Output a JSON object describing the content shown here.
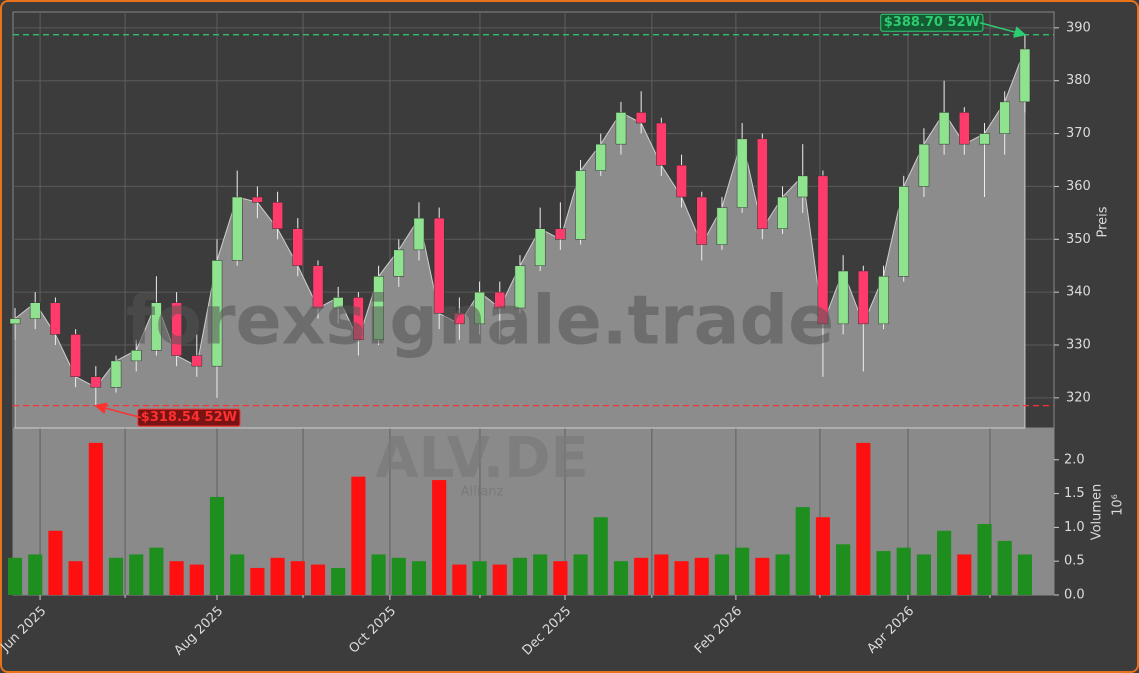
{
  "chart_data": {
    "type": "candlestick",
    "watermark": "forexsignale.trade",
    "symbol": "ALV.DE",
    "company": "Allianz",
    "ylabel": "Preis",
    "volume_label": "Volumen",
    "volume_multiplier_label": "10⁶",
    "up_color": "#8fe38f",
    "down_color": "#ff3b6b",
    "volume_up_color": "#1e8f1e",
    "volume_down_color": "#ff1010",
    "area_color": "#8c8c8c",
    "grid": true,
    "xlim": [
      -0.1,
      51.44
    ],
    "xticks": [
      {
        "value": 1.24,
        "label": "Jun 2025"
      },
      {
        "value": 10.0,
        "label": "Aug 2025"
      },
      {
        "value": 18.56,
        "label": "Oct 2025"
      },
      {
        "value": 27.23,
        "label": "Dec 2025"
      },
      {
        "value": 35.69,
        "label": "Feb 2026"
      },
      {
        "value": 44.21,
        "label": "Apr 2026"
      }
    ],
    "xminorticks": [
      5.45,
      14.26,
      23.02,
      31.53,
      39.85,
      48.27
    ],
    "ylim": [
      314.3,
      393.0
    ],
    "yticks": [
      320,
      330,
      340,
      350,
      360,
      370,
      380,
      390
    ],
    "volume_ylim": [
      0,
      2.47
    ],
    "volume_yticks": [
      {
        "value": 0,
        "label": "0.0"
      },
      0.5,
      {
        "value": 1,
        "label": "1.0"
      },
      1.5,
      {
        "value": 2,
        "label": "2.0"
      }
    ],
    "open": [
      334,
      335,
      338,
      332,
      324,
      322,
      327,
      329,
      338,
      328,
      326,
      346,
      358,
      357,
      352,
      345,
      337,
      339,
      331,
      343,
      348,
      354,
      336,
      334,
      340,
      337,
      345,
      352,
      350,
      363,
      368,
      374,
      372,
      364,
      358,
      349,
      356,
      369,
      352,
      358,
      362,
      334,
      344,
      334,
      343,
      360,
      368,
      374,
      368,
      370,
      376
    ],
    "high": [
      337,
      340,
      339,
      333,
      326,
      328,
      331,
      343,
      340,
      332,
      350,
      363,
      360,
      359,
      354,
      346,
      341,
      340,
      345,
      350,
      357,
      356,
      339,
      342,
      342,
      347,
      356,
      357,
      365,
      370,
      376,
      378,
      373,
      366,
      359,
      358,
      372,
      370,
      360,
      368,
      363,
      347,
      345,
      345,
      362,
      371,
      380,
      375,
      372,
      378,
      388.7
    ],
    "low": [
      331,
      333,
      330,
      322,
      318.54,
      321,
      325,
      328,
      326,
      324,
      320,
      345,
      354,
      350,
      343,
      335,
      334,
      328,
      330,
      341,
      346,
      333,
      331,
      332,
      331,
      336,
      344,
      348,
      349,
      362,
      366,
      370,
      362,
      356,
      346,
      348,
      355,
      350,
      351,
      355,
      324,
      332,
      325,
      333,
      342,
      358,
      366,
      366,
      358,
      366,
      374
    ],
    "close": [
      335,
      338,
      332,
      324,
      322,
      327,
      329,
      338,
      328,
      326,
      346,
      358,
      357,
      352,
      345,
      337,
      339,
      331,
      343,
      348,
      354,
      336,
      334,
      340,
      337,
      345,
      352,
      350,
      363,
      368,
      374,
      372,
      364,
      358,
      349,
      356,
      369,
      352,
      358,
      362,
      334,
      344,
      334,
      343,
      360,
      368,
      374,
      368,
      370,
      376,
      386
    ],
    "volume": [
      0.55,
      0.6,
      0.95,
      0.5,
      2.25,
      0.55,
      0.6,
      0.7,
      0.5,
      0.45,
      1.45,
      0.6,
      0.4,
      0.55,
      0.5,
      0.45,
      0.4,
      1.75,
      0.6,
      0.55,
      0.5,
      1.7,
      0.45,
      0.5,
      0.45,
      0.55,
      0.6,
      0.5,
      0.6,
      1.15,
      0.5,
      0.55,
      0.6,
      0.5,
      0.55,
      0.6,
      0.7,
      0.55,
      0.6,
      1.3,
      1.15,
      0.75,
      2.25,
      0.65,
      0.7,
      0.6,
      0.95,
      0.6,
      1.05,
      0.8,
      0.6
    ],
    "annotations": [
      {
        "text": "$388.70 52W",
        "value": 388.7,
        "color": "#2ecc71",
        "background": "#145a32"
      },
      {
        "text": "$318.54 52W",
        "value": 318.54,
        "color": "#ff3030",
        "background": "#7a1414"
      }
    ]
  }
}
